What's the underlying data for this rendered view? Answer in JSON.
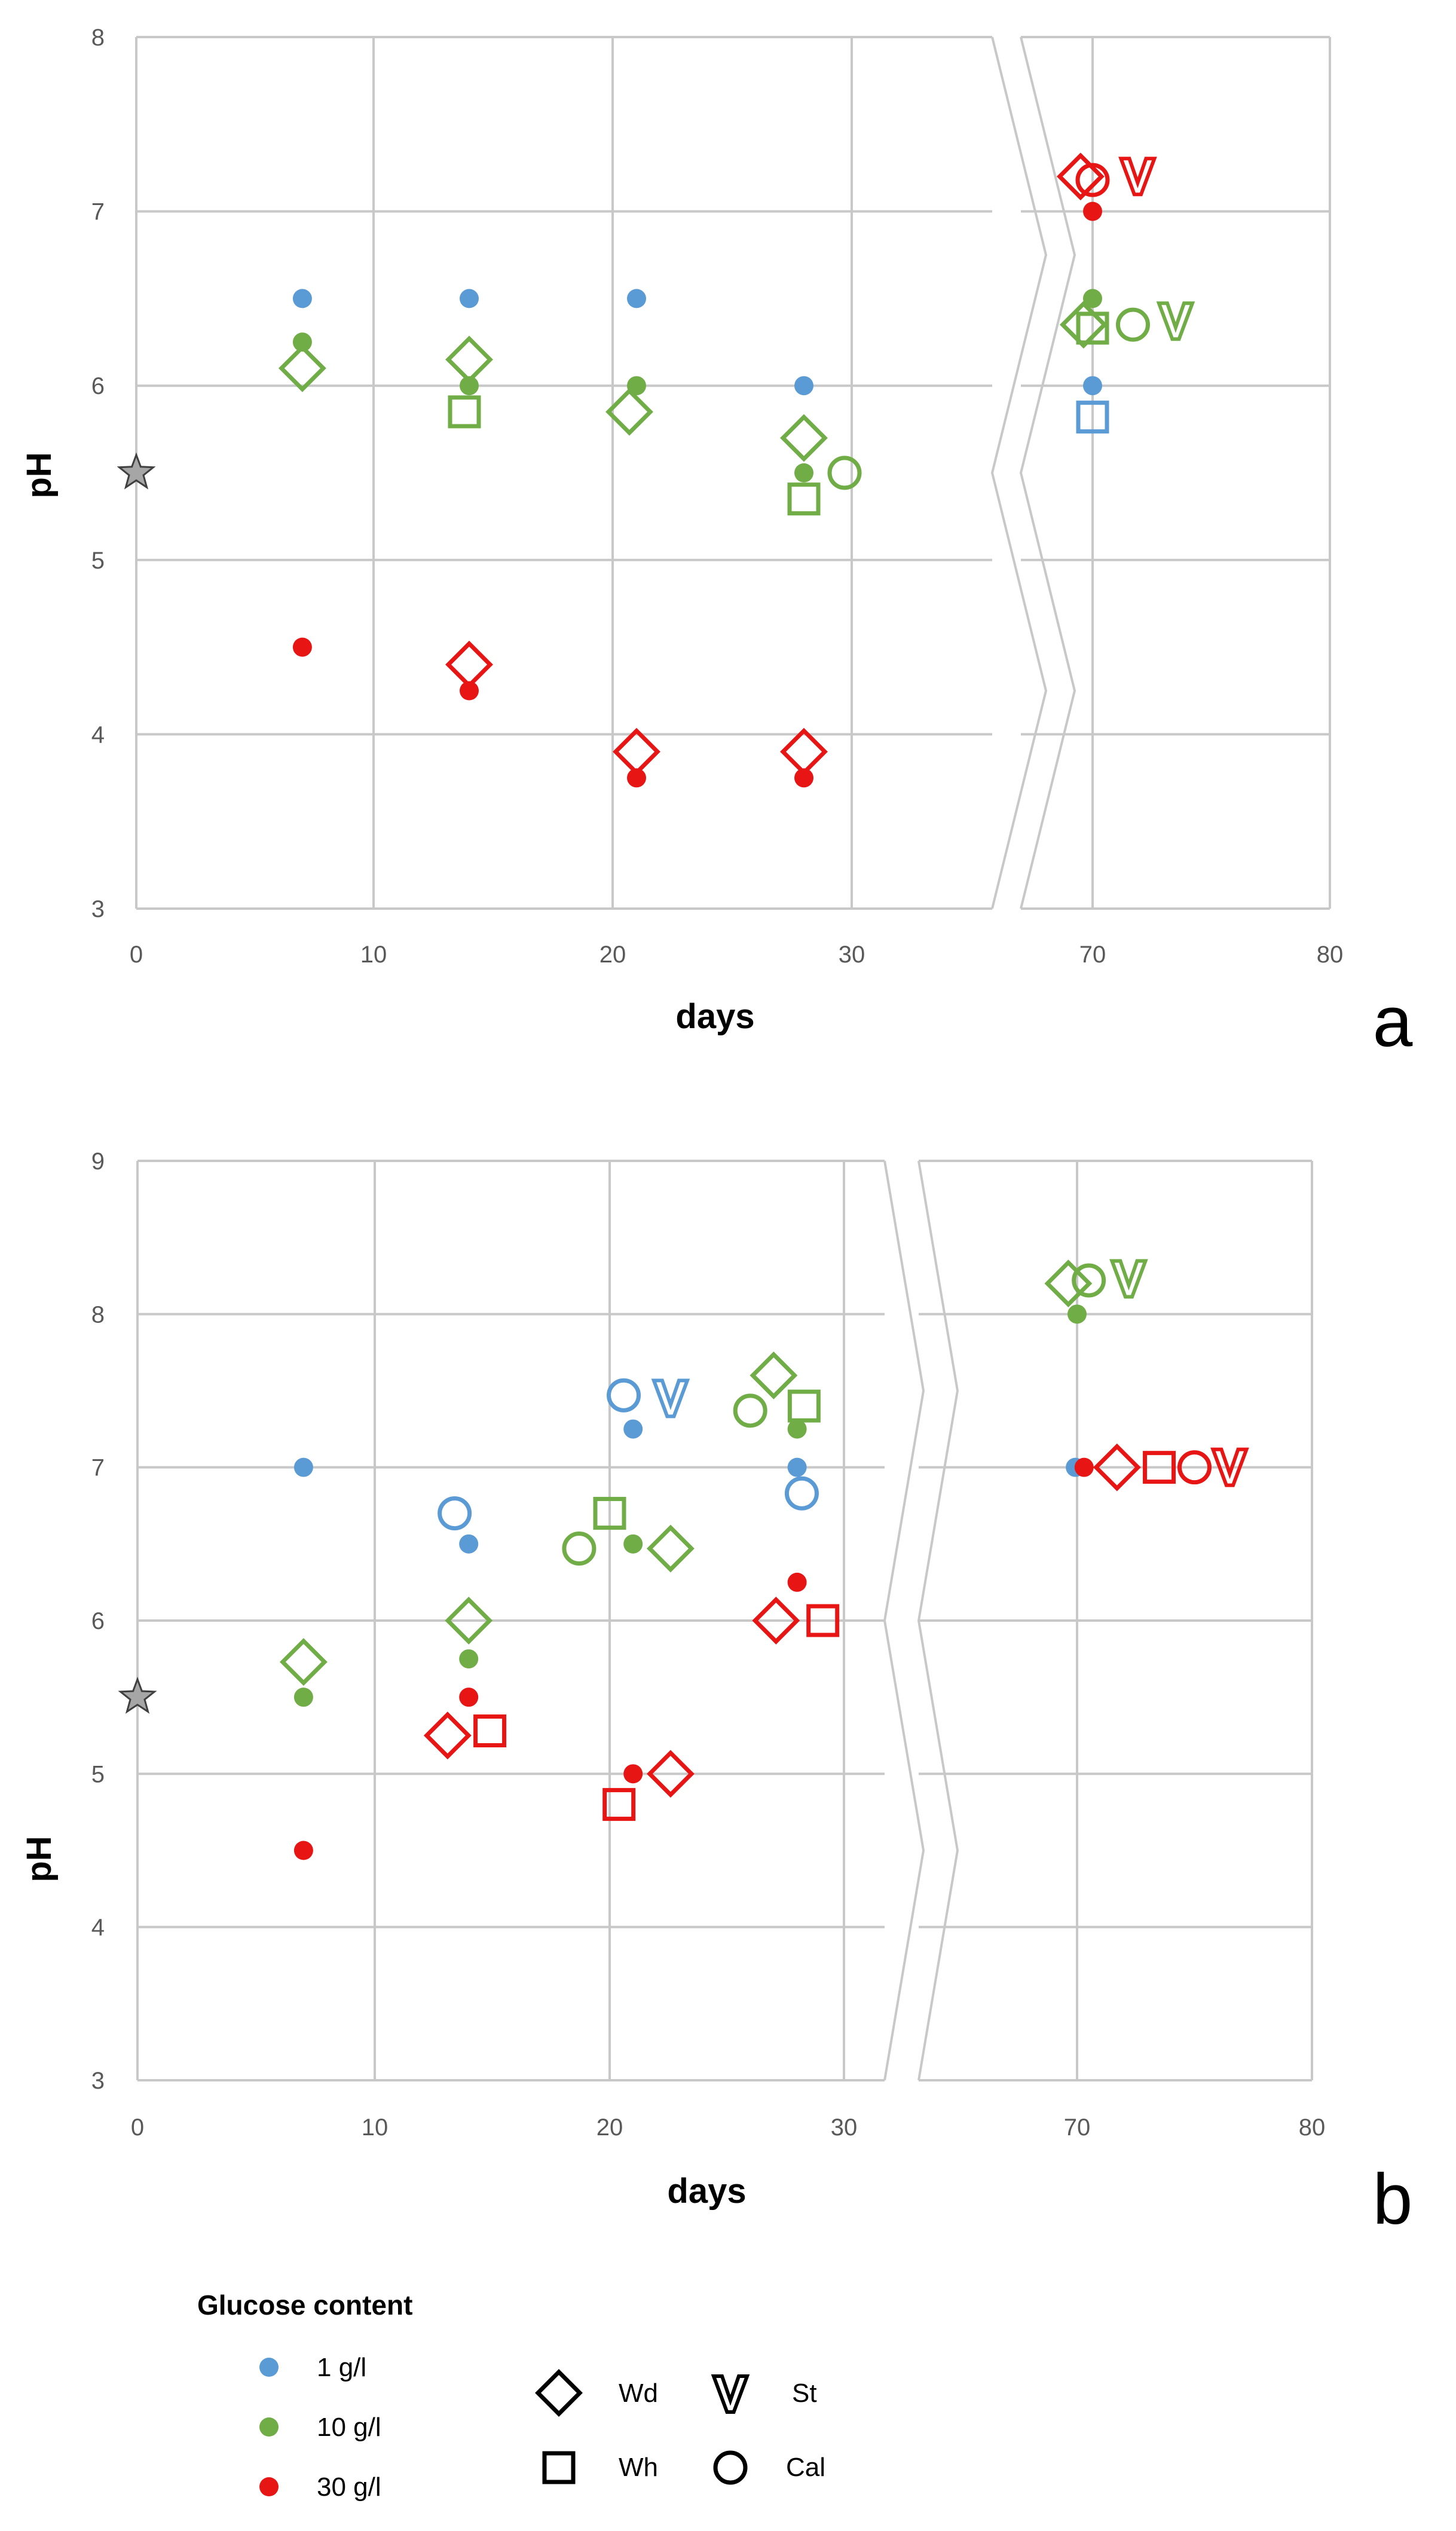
{
  "colors": {
    "blue": "#5B9BD5",
    "green": "#70AD47",
    "red": "#E81515",
    "grid": "#C8C8C8",
    "star": "#A6A6A6"
  },
  "chart_data": [
    {
      "type": "scatter",
      "panel": "a",
      "title": "",
      "xlabel": "days",
      "ylabel": "pH",
      "ylim": [
        3,
        8
      ],
      "x_breaks": [
        0,
        10,
        20,
        30,
        70,
        80
      ],
      "x_tick_labels": [
        "0",
        "10",
        "20",
        "30",
        "70",
        "80"
      ],
      "y_tick_labels": [
        "3",
        "4",
        "5",
        "6",
        "7",
        "8"
      ],
      "reference_point": {
        "x": 0,
        "y": 5.5,
        "marker": "star"
      },
      "series": [
        {
          "name": "1 g/l",
          "marker": "dot",
          "color": "blue",
          "points": [
            [
              7,
              6.5
            ],
            [
              14,
              6.5
            ],
            [
              21,
              6.5
            ],
            [
              28,
              6.0
            ],
            [
              70,
              6.0
            ]
          ]
        },
        {
          "name": "10 g/l",
          "marker": "dot",
          "color": "green",
          "points": [
            [
              7,
              6.25
            ],
            [
              14,
              6.0
            ],
            [
              21,
              6.0
            ],
            [
              28,
              5.5
            ],
            [
              70,
              6.5
            ]
          ]
        },
        {
          "name": "30 g/l",
          "marker": "dot",
          "color": "red",
          "points": [
            [
              7,
              4.5
            ],
            [
              14,
              4.25
            ],
            [
              21,
              3.75
            ],
            [
              28,
              3.75
            ],
            [
              70,
              7.0
            ]
          ]
        },
        {
          "name": "Wd 10 g/l",
          "marker": "diamond",
          "color": "green",
          "points": [
            [
              7,
              6.1
            ],
            [
              14,
              6.15
            ],
            [
              20.7,
              5.85
            ],
            [
              28,
              5.7
            ],
            [
              68.5,
              6.35
            ]
          ]
        },
        {
          "name": "Wd 30 g/l",
          "marker": "diamond",
          "color": "red",
          "points": [
            [
              14,
              4.4
            ],
            [
              21,
              3.9
            ],
            [
              28,
              3.9
            ],
            [
              68,
              7.2
            ]
          ]
        },
        {
          "name": "Wh 1 g/l",
          "marker": "square",
          "color": "blue",
          "points": [
            [
              70,
              5.82
            ]
          ]
        },
        {
          "name": "Wh 10 g/l",
          "marker": "square",
          "color": "green",
          "points": [
            [
              13.8,
              5.85
            ],
            [
              28,
              5.35
            ],
            [
              70,
              6.33
            ]
          ]
        },
        {
          "name": "Cal 10 g/l",
          "marker": "circle",
          "color": "green",
          "points": [
            [
              29.7,
              5.5
            ],
            [
              71.7,
              6.35
            ]
          ]
        },
        {
          "name": "Cal 30 g/l",
          "marker": "circle",
          "color": "red",
          "points": [
            [
              70,
              7.18
            ]
          ]
        },
        {
          "name": "St 10 g/l",
          "marker": "st",
          "color": "green",
          "points": [
            [
              73.5,
              6.37
            ]
          ]
        },
        {
          "name": "St 30 g/l",
          "marker": "st",
          "color": "red",
          "points": [
            [
              71.9,
              7.2
            ]
          ]
        }
      ]
    },
    {
      "type": "scatter",
      "panel": "b",
      "title": "",
      "xlabel": "days",
      "ylabel": "pH",
      "ylim": [
        3,
        9
      ],
      "x_breaks": [
        0,
        10,
        20,
        30,
        70,
        80
      ],
      "x_tick_labels": [
        "0",
        "10",
        "20",
        "30",
        "70",
        "80"
      ],
      "y_tick_labels": [
        "3",
        "4",
        "5",
        "6",
        "7",
        "8",
        "9"
      ],
      "reference_point": {
        "x": 0,
        "y": 5.5,
        "marker": "star"
      },
      "series": [
        {
          "name": "1 g/l",
          "marker": "dot",
          "color": "blue",
          "points": [
            [
              7,
              7.0
            ],
            [
              14,
              6.5
            ],
            [
              21,
              7.25
            ],
            [
              28,
              7.0
            ],
            [
              69.7,
              7.0
            ]
          ]
        },
        {
          "name": "10 g/l",
          "marker": "dot",
          "color": "green",
          "points": [
            [
              7,
              5.5
            ],
            [
              14,
              5.75
            ],
            [
              21,
              6.5
            ],
            [
              28,
              7.25
            ],
            [
              70,
              8.0
            ]
          ]
        },
        {
          "name": "30 g/l",
          "marker": "dot",
          "color": "red",
          "points": [
            [
              7,
              4.5
            ],
            [
              14,
              5.5
            ],
            [
              21,
              5.0
            ],
            [
              28,
              6.25
            ],
            [
              70.3,
              7.0
            ]
          ]
        },
        {
          "name": "Wd 10 g/l",
          "marker": "diamond",
          "color": "green",
          "points": [
            [
              7,
              5.73
            ],
            [
              14,
              6.0
            ],
            [
              22.6,
              6.47
            ],
            [
              27,
              7.6
            ],
            [
              68.5,
              8.2
            ]
          ]
        },
        {
          "name": "Wd 30 g/l",
          "marker": "diamond",
          "color": "red",
          "points": [
            [
              13.1,
              5.25
            ],
            [
              22.6,
              5.0
            ],
            [
              27.1,
              6.0
            ],
            [
              71.7,
              7.0
            ]
          ]
        },
        {
          "name": "Wh 10 g/l",
          "marker": "square",
          "color": "green",
          "points": [
            [
              20,
              6.7
            ],
            [
              28.3,
              7.4
            ]
          ]
        },
        {
          "name": "Wh 30 g/l",
          "marker": "square",
          "color": "red",
          "points": [
            [
              14.9,
              5.28
            ],
            [
              20.4,
              4.8
            ],
            [
              29.1,
              6.0
            ],
            [
              73.5,
              7.0
            ]
          ]
        },
        {
          "name": "Cal 1 g/l",
          "marker": "circle",
          "color": "blue",
          "points": [
            [
              13.4,
              6.7
            ],
            [
              20.6,
              7.47
            ],
            [
              28.2,
              6.83
            ]
          ]
        },
        {
          "name": "Cal 10 g/l",
          "marker": "circle",
          "color": "green",
          "points": [
            [
              18.7,
              6.47
            ],
            [
              26,
              7.37
            ],
            [
              70.5,
              8.22
            ]
          ]
        },
        {
          "name": "Cal 30 g/l",
          "marker": "circle",
          "color": "red",
          "points": [
            [
              75,
              7.0
            ]
          ]
        },
        {
          "name": "St 1 g/l",
          "marker": "st",
          "color": "blue",
          "points": [
            [
              22.6,
              7.45
            ]
          ]
        },
        {
          "name": "St 10 g/l",
          "marker": "st",
          "color": "green",
          "points": [
            [
              72.2,
              8.23
            ]
          ]
        },
        {
          "name": "St 30 g/l",
          "marker": "st",
          "color": "red",
          "points": [
            [
              76.5,
              7.0
            ]
          ]
        }
      ]
    }
  ],
  "legend": {
    "title": "Glucose content",
    "glucose": [
      {
        "label": "1 g/l",
        "color": "blue"
      },
      {
        "label": "10 g/l",
        "color": "green"
      },
      {
        "label": "30 g/l",
        "color": "red"
      }
    ],
    "markers": [
      {
        "label": "Wd",
        "marker": "diamond"
      },
      {
        "label": "St",
        "marker": "st"
      },
      {
        "label": "Wh",
        "marker": "square"
      },
      {
        "label": "Cal",
        "marker": "circle"
      }
    ]
  }
}
